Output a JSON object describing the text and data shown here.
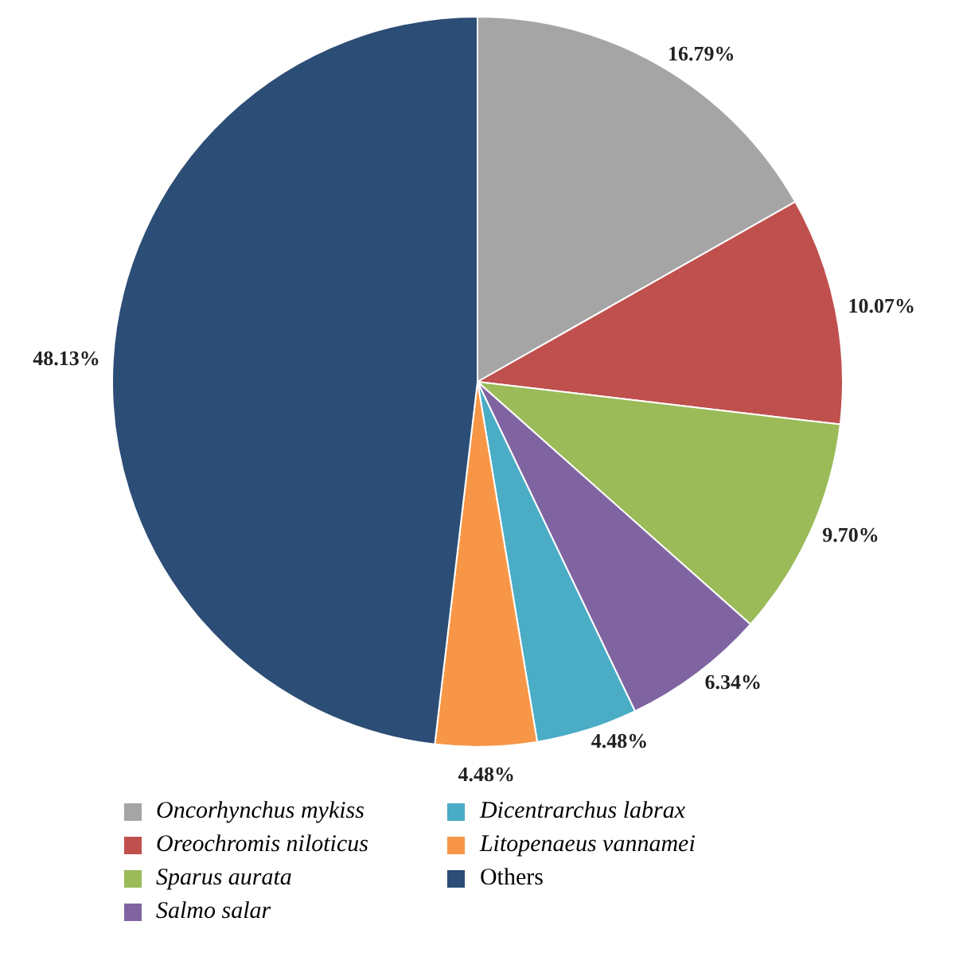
{
  "chart_data": {
    "type": "pie",
    "categories": [
      "Oncorhynchus mykiss",
      "Oreochromis niloticus",
      "Sparus aurata",
      "Salmo salar",
      "Dicentrarchus labrax",
      "Litopenaeus vannamei",
      "Others"
    ],
    "values": [
      16.79,
      10.07,
      9.7,
      6.34,
      4.48,
      4.48,
      48.13
    ],
    "colors": [
      "#a5a5a5",
      "#c0504d",
      "#9bbb59",
      "#8064a2",
      "#4bacc6",
      "#f79646",
      "#2c4d75"
    ],
    "value_labels": [
      "16.79%",
      "10.07%",
      "9.70%",
      "6.34%",
      "4.48%",
      "4.48%",
      "48.13%"
    ],
    "legend": "bottom"
  }
}
